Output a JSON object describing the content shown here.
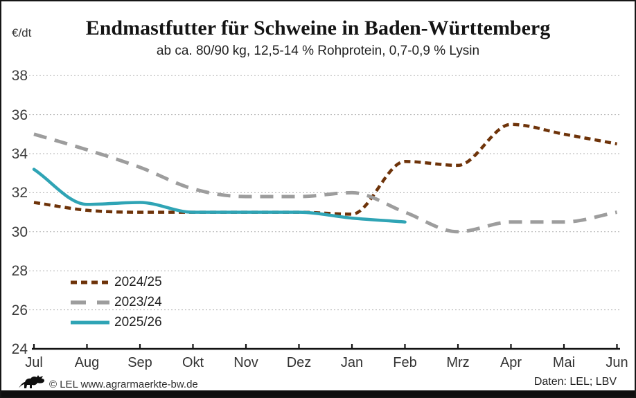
{
  "header": {
    "unit_label": "€/dt",
    "title": "Endmastfutter für Schweine in Baden-Württemberg",
    "subtitle": "ab ca. 80/90 kg, 12,5-14 % Rohprotein, 0,7-0,9 % Lysin"
  },
  "footer": {
    "copyright": "© LEL www.agrarmaerkte-bw.de",
    "source": "Daten: LEL; LBV",
    "logo_icon": "bw-lion-icon"
  },
  "chart_data": {
    "type": "line",
    "title": "Endmastfutter für Schweine in Baden-Württemberg",
    "subtitle": "ab ca. 80/90 kg, 12,5-14 % Rohprotein, 0,7-0,9 % Lysin",
    "ylabel": "€/dt",
    "xlabel": "",
    "ylim": [
      24,
      38
    ],
    "y_ticks": [
      24,
      26,
      28,
      30,
      32,
      34,
      36,
      38
    ],
    "grid": "horizontal-dotted",
    "legend_position": "inside-bottom-left",
    "categories": [
      "Jul",
      "Aug",
      "Sep",
      "Okt",
      "Nov",
      "Dez",
      "Jan",
      "Feb",
      "Mrz",
      "Apr",
      "Mai",
      "Jun"
    ],
    "series": [
      {
        "name": "2024/25",
        "color": "#6E3309",
        "style": "dashed-short",
        "values": [
          31.5,
          31.1,
          31.0,
          31.0,
          31.0,
          31.0,
          30.9,
          33.6,
          33.4,
          35.5,
          35.0,
          34.5
        ]
      },
      {
        "name": "2023/24",
        "color": "#9D9D9D",
        "style": "dashed-long",
        "values": [
          35.0,
          34.2,
          33.3,
          32.2,
          31.8,
          31.8,
          32.0,
          31.0,
          30.0,
          30.5,
          30.5,
          31.0
        ]
      },
      {
        "name": "2025/26",
        "color": "#2FA4B5",
        "style": "solid",
        "values": [
          33.2,
          31.4,
          31.5,
          31.0,
          31.0,
          31.0,
          30.7,
          30.5,
          null,
          null,
          null,
          null
        ]
      }
    ]
  }
}
